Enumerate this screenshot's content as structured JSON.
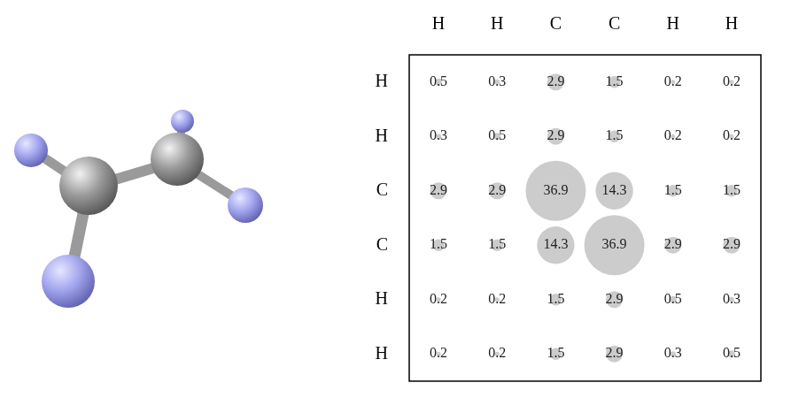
{
  "chart_data": {
    "type": "bubble",
    "categories": [
      "H",
      "H",
      "C",
      "C",
      "H",
      "H"
    ],
    "rows": [
      "H",
      "H",
      "C",
      "C",
      "H",
      "H"
    ],
    "cells": [
      [
        0.5,
        0.3,
        2.9,
        1.5,
        0.2,
        0.2
      ],
      [
        0.3,
        0.5,
        2.9,
        1.5,
        0.2,
        0.2
      ],
      [
        2.9,
        2.9,
        36.9,
        14.3,
        1.5,
        1.5
      ],
      [
        1.5,
        1.5,
        14.3,
        36.9,
        2.9,
        2.9
      ],
      [
        0.2,
        0.2,
        1.5,
        2.9,
        0.5,
        0.3
      ],
      [
        0.2,
        0.2,
        1.5,
        2.9,
        0.3,
        0.5
      ]
    ],
    "color": "#cccccc",
    "grid": false,
    "data_labels": true
  }
}
